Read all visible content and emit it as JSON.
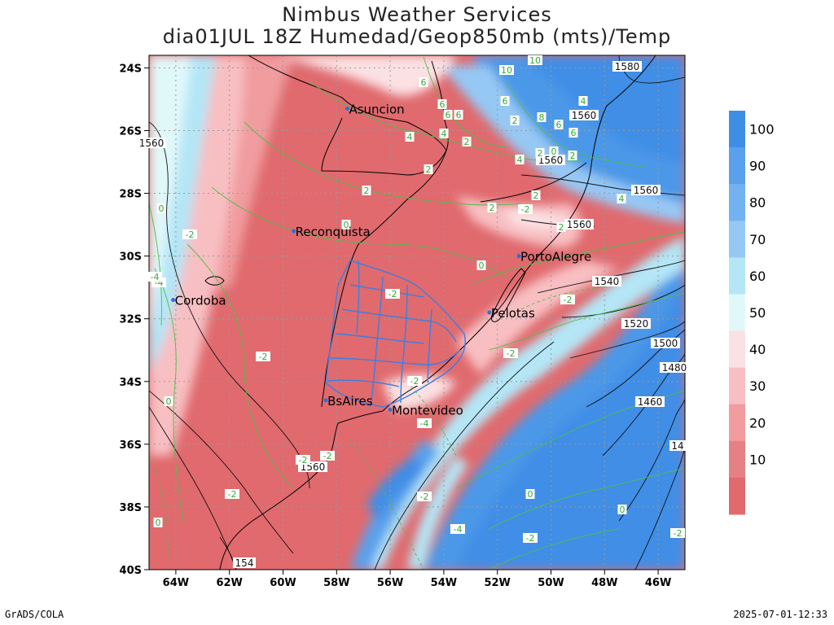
{
  "header": {
    "title": "Nimbus Weather Services",
    "subtitle": "dia01JUL 18Z Humedad/Geop850mb (mts)/Temp"
  },
  "axes": {
    "lat_labels": [
      "24S",
      "26S",
      "28S",
      "30S",
      "32S",
      "34S",
      "36S",
      "38S",
      "40S"
    ],
    "lon_labels": [
      "64W",
      "62W",
      "60W",
      "58W",
      "56W",
      "54W",
      "52W",
      "50W",
      "48W",
      "46W"
    ]
  },
  "cities": [
    {
      "name": "Asuncion",
      "lon": -57.6,
      "lat": -25.3
    },
    {
      "name": "Reconquista",
      "lon": -59.6,
      "lat": -29.2
    },
    {
      "name": "PortoAlegre",
      "lon": -51.2,
      "lat": -30.0
    },
    {
      "name": "Cordoba",
      "lon": -64.1,
      "lat": -31.4
    },
    {
      "name": "Pelotas",
      "lon": -52.3,
      "lat": -31.8
    },
    {
      "name": "BsAires",
      "lon": -58.4,
      "lat": -34.6
    },
    {
      "name": "Montevideo",
      "lon": -56.0,
      "lat": -34.9
    }
  ],
  "geopotential_labels": [
    "1580",
    "1560",
    "1560",
    "1560",
    "1560",
    "1540",
    "1520",
    "1500",
    "1480",
    "1460",
    "1560",
    "1560",
    "154",
    "14"
  ],
  "temperature_labels": [
    "10",
    "10",
    "6",
    "6",
    "6",
    "6",
    "4",
    "4",
    "2",
    "2",
    "2",
    "8",
    "6",
    "6",
    "6",
    "2",
    "4",
    "4",
    "2",
    "0",
    "2",
    "-2",
    "2",
    "4",
    "2",
    "0",
    "-2",
    "2",
    "0",
    "-2",
    "-2",
    "0",
    "-4",
    "-2",
    "-2",
    "0",
    "-2",
    "-2",
    "-2",
    "-4",
    "-2",
    "-4",
    "0",
    "-2",
    "0",
    "-2",
    "-2",
    "0",
    "-4",
    "-2"
  ],
  "legend": {
    "labels": [
      "100",
      "90",
      "80",
      "70",
      "60",
      "50",
      "40",
      "30",
      "20",
      "10"
    ],
    "colors": [
      "#3f8ee6",
      "#5aa0ec",
      "#72b2f0",
      "#96c8f4",
      "#b4e6f6",
      "#e1f8f9",
      "#fbe1e3",
      "#f8bfc2",
      "#f19c9f",
      "#e58085",
      "#e06a6e"
    ]
  },
  "footer": {
    "left": "GrADS/COLA",
    "right": "2025-07-01-12:33"
  }
}
